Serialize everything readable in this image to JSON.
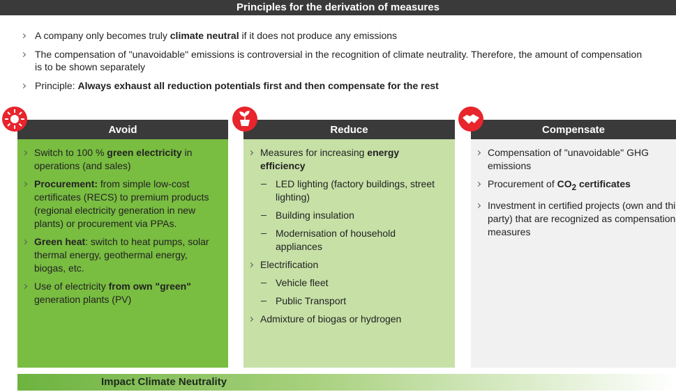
{
  "header": {
    "title": "Principles for the derivation of measures"
  },
  "intro": [
    {
      "parts": [
        "A company only becomes truly ",
        {
          "text": "climate neutral",
          "bold": true
        },
        " if it does not produce any emissions"
      ]
    },
    {
      "parts": [
        "The compensation of \"unavoidable\" emissions is controversial in the recognition of climate neutrality. Therefore, the amount of compensation is to be shown separately"
      ]
    },
    {
      "parts": [
        "Principle: ",
        {
          "text": "Always exhaust all reduction potentials first and then compensate for the rest",
          "bold": true
        }
      ]
    }
  ],
  "columns": [
    {
      "title": "Avoid",
      "bullets": [
        {
          "level": 1,
          "parts": [
            "Switch to 100 % ",
            {
              "text": "green electricity",
              "bold": true
            },
            " in operations (and sales)"
          ]
        },
        {
          "level": 1,
          "parts": [
            {
              "text": "Procurement:",
              "bold": true
            },
            " from simple low-cost certificates (RECS) to premium products (regional electricity generation in new plants) or procurement via PPAs."
          ]
        },
        {
          "level": 1,
          "parts": [
            {
              "text": "Green heat",
              "bold": true
            },
            ": switch to heat pumps, solar thermal energy, geothermal energy, biogas, etc."
          ]
        },
        {
          "level": 1,
          "parts": [
            "Use of electricity ",
            {
              "text": "from own \"green\"",
              "bold": true
            },
            " generation plants (PV)"
          ]
        }
      ]
    },
    {
      "title": "Reduce",
      "bullets": [
        {
          "level": 1,
          "parts": [
            "Measures for increasing ",
            {
              "text": "energy efficiency",
              "bold": true
            }
          ]
        },
        {
          "level": 2,
          "parts": [
            "LED lighting (factory buildings, street lighting)"
          ]
        },
        {
          "level": 2,
          "parts": [
            "Building insulation"
          ]
        },
        {
          "level": 2,
          "parts": [
            "Modernisation of household appliances"
          ]
        },
        {
          "level": 1,
          "parts": [
            "Electrification"
          ]
        },
        {
          "level": 2,
          "parts": [
            "Vehicle fleet"
          ]
        },
        {
          "level": 2,
          "parts": [
            "Public Transport"
          ]
        },
        {
          "level": 1,
          "parts": [
            "Admixture of biogas or hydrogen"
          ]
        }
      ]
    },
    {
      "title": "Compensate",
      "bullets": [
        {
          "level": 1,
          "parts": [
            "Compensation of \"unavoidable\" GHG emissions"
          ]
        },
        {
          "level": 1,
          "parts": [
            "Procurement of ",
            {
              "text": "CO",
              "bold": true
            },
            {
              "text": "2",
              "bold": true,
              "sub": true
            },
            {
              "text": " certificates",
              "bold": true
            }
          ]
        },
        {
          "level": 1,
          "parts": [
            "Investment in certified projects (own and third-party) that are recognized as compensation measures"
          ]
        }
      ]
    }
  ],
  "footer": {
    "label": "Impact Climate Neutrality"
  }
}
